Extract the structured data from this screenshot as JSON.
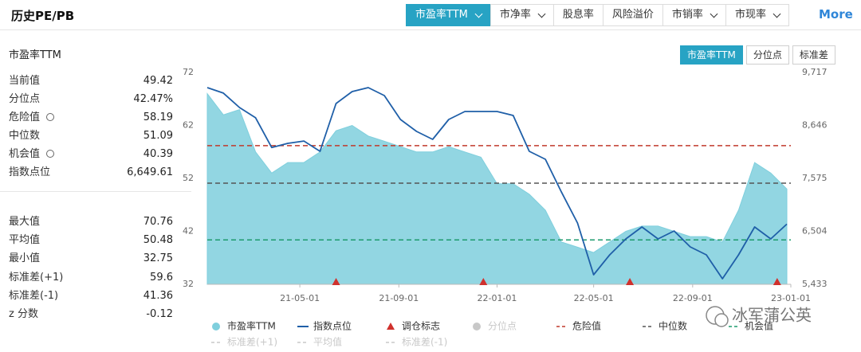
{
  "header": {
    "title": "历史PE/PB",
    "tabs": [
      {
        "label": "市盈率TTM",
        "dropdown": true,
        "active": true
      },
      {
        "label": "市净率",
        "dropdown": true,
        "active": false
      },
      {
        "label": "股息率",
        "dropdown": false,
        "active": false
      },
      {
        "label": "风险溢价",
        "dropdown": false,
        "active": false
      },
      {
        "label": "市销率",
        "dropdown": true,
        "active": false
      },
      {
        "label": "市现率",
        "dropdown": true,
        "active": false
      }
    ],
    "more": "More"
  },
  "panel": {
    "title": "市盈率TTM",
    "rows": [
      {
        "label": "当前值",
        "value": 49.42
      },
      {
        "label": "分位点",
        "value": "42.47%"
      },
      {
        "label": "危险值",
        "value": 58.19,
        "icon": true
      },
      {
        "label": "中位数",
        "value": 51.09
      },
      {
        "label": "机会值",
        "value": 40.39,
        "icon": true
      },
      {
        "label": "指数点位",
        "value": "6,649.61"
      }
    ],
    "rows2": [
      {
        "label": "最大值",
        "value": 70.76
      },
      {
        "label": "平均值",
        "value": 50.48
      },
      {
        "label": "最小值",
        "value": 32.75
      },
      {
        "label": "标准差(+1)",
        "value": 59.6
      },
      {
        "label": "标准差(-1)",
        "value": 41.36
      },
      {
        "label": "z 分数",
        "value": -0.12
      }
    ]
  },
  "modes": [
    {
      "label": "市盈率TTM",
      "active": true
    },
    {
      "label": "分位点",
      "active": false
    },
    {
      "label": "标准差",
      "active": false
    }
  ],
  "watermark": "冰军蒲公英",
  "chart_data": {
    "type": "area-line",
    "x": [
      "21-01-06",
      "21-01-26",
      "21-02-15",
      "21-03-07",
      "21-03-27",
      "21-04-16",
      "21-05-06",
      "21-05-26",
      "21-06-15",
      "21-07-05",
      "21-07-25",
      "21-08-14",
      "21-09-03",
      "21-09-23",
      "21-10-13",
      "21-11-02",
      "21-11-22",
      "21-12-12",
      "22-01-01",
      "22-01-21",
      "22-02-10",
      "22-03-02",
      "22-03-22",
      "22-04-11",
      "22-05-01",
      "22-05-21",
      "22-06-10",
      "22-06-30",
      "22-07-20",
      "22-08-09",
      "22-08-29",
      "22-09-18",
      "22-10-08",
      "22-10-28",
      "22-11-17",
      "22-12-07",
      "22-12-27"
    ],
    "xlim": [
      "21-01-06",
      "23-01-01"
    ],
    "xticks": [
      "21-05-01",
      "21-09-01",
      "22-01-01",
      "22-05-01",
      "22-09-01",
      "23-01-01"
    ],
    "ylim": [
      32,
      72
    ],
    "yticks": [
      32,
      42,
      52,
      62,
      72
    ],
    "y2lim": [
      5433,
      9717
    ],
    "y2ticks": [
      {
        "value": 5433,
        "label": "5,433"
      },
      {
        "value": 6504,
        "label": "6,504"
      },
      {
        "value": 7575,
        "label": "7,575"
      },
      {
        "value": 8646,
        "label": "8,646"
      },
      {
        "value": 9717,
        "label": "9,717"
      }
    ],
    "series": [
      {
        "name": "市盈率TTM",
        "kind": "area",
        "color": "#7fcfdd",
        "values": [
          68,
          64,
          65,
          57,
          53,
          55,
          55,
          57,
          61,
          62,
          60,
          59,
          58,
          57,
          57,
          58,
          57,
          56,
          51,
          51,
          49,
          46,
          40,
          39,
          38,
          40,
          42,
          43,
          43,
          42,
          41,
          41,
          40,
          46,
          55,
          53,
          50
        ]
      },
      {
        "name": "指数点位",
        "kind": "line",
        "axis": "y2",
        "color": "#1f5fa8",
        "values": [
          9411,
          9300,
          9008,
          8800,
          8200,
          8284,
          8330,
          8123,
          9089,
          9330,
          9411,
          9250,
          8767,
          8525,
          8364,
          8767,
          8928,
          8928,
          8928,
          8847,
          8123,
          7962,
          7300,
          6673,
          5626,
          6029,
          6351,
          6592,
          6351,
          6512,
          6190,
          6029,
          5546,
          6029,
          6592,
          6351,
          6650
        ]
      }
    ],
    "markers": {
      "name": "调仓标志",
      "color": "#d0312d",
      "x": [
        "21-06-15",
        "21-12-15",
        "22-06-15",
        "22-12-15"
      ]
    },
    "reference_lines": [
      {
        "name": "危险值",
        "value": 58.19,
        "color": "#c0392b"
      },
      {
        "name": "中位数",
        "value": 51.09,
        "color": "#555555"
      },
      {
        "name": "机会值",
        "value": 40.39,
        "color": "#1e9b6e"
      }
    ],
    "inactive_legend": [
      {
        "name": "分位点",
        "symbol": "circle"
      },
      {
        "name": "标准差(+1)",
        "symbol": "dash"
      },
      {
        "name": "平均值",
        "symbol": "dash"
      },
      {
        "name": "标准差(-1)",
        "symbol": "dash"
      }
    ],
    "inactive_color": "#c8c8c8"
  }
}
